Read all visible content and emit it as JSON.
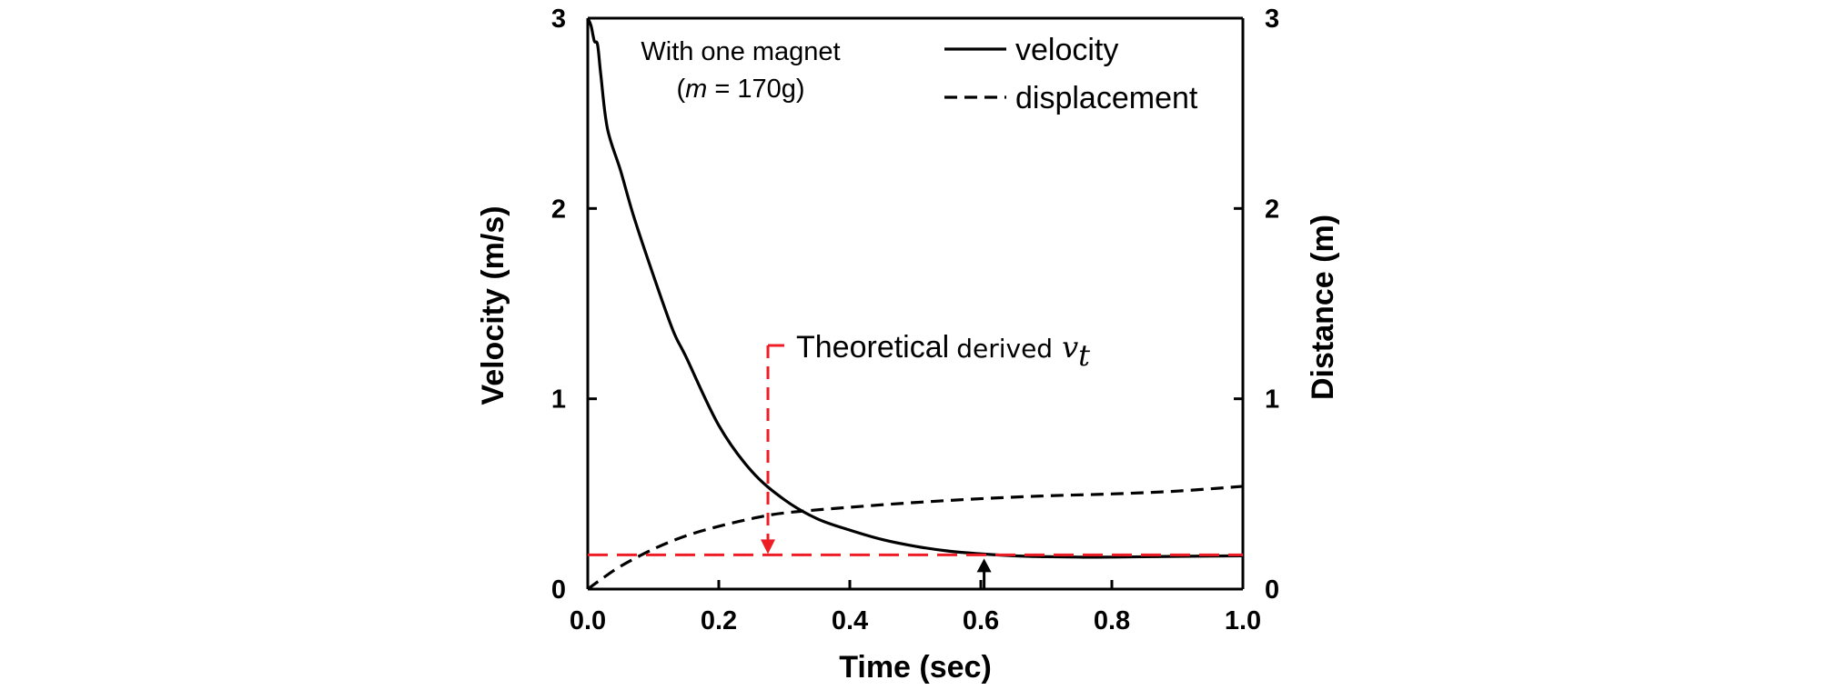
{
  "chart_data": {
    "type": "line",
    "x_axis": {
      "label": "Time (sec)",
      "range": [
        0.0,
        1.0
      ],
      "ticks": [
        0.0,
        0.2,
        0.4,
        0.6,
        0.8,
        1.0
      ],
      "tick_labels": [
        "0.0",
        "0.2",
        "0.4",
        "0.6",
        "0.8",
        "1.0"
      ]
    },
    "y_axis_left": {
      "label": "Velocity (m/s)",
      "range": [
        0,
        3
      ],
      "ticks": [
        0,
        1,
        2,
        3
      ],
      "tick_labels": [
        "0",
        "1",
        "2",
        "3"
      ]
    },
    "y_axis_right": {
      "label": "Distance (m)",
      "range": [
        0,
        3
      ],
      "ticks": [
        0,
        1,
        2,
        3
      ],
      "tick_labels": [
        "0",
        "1",
        "2",
        "3"
      ]
    },
    "grid": false,
    "legend_position": "top-right",
    "note": {
      "line1": "With one magnet",
      "line2_var": "m",
      "line2_rest": " = 170g)",
      "line2_open": "("
    },
    "series": [
      {
        "name": "velocity",
        "axis": "left",
        "style": "solid",
        "color": "#000000",
        "x": [
          0.0,
          0.005,
          0.01,
          0.015,
          0.02,
          0.03,
          0.05,
          0.07,
          0.1,
          0.13,
          0.15,
          0.2,
          0.25,
          0.3,
          0.35,
          0.4,
          0.45,
          0.5,
          0.55,
          0.6,
          0.65,
          0.7,
          0.75,
          0.8,
          0.9,
          1.0
        ],
        "y": [
          3.0,
          2.96,
          2.88,
          2.86,
          2.7,
          2.42,
          2.2,
          1.96,
          1.65,
          1.36,
          1.22,
          0.86,
          0.62,
          0.47,
          0.37,
          0.31,
          0.26,
          0.225,
          0.2,
          0.185,
          0.175,
          0.17,
          0.168,
          0.168,
          0.172,
          0.175
        ]
      },
      {
        "name": "displacement",
        "axis": "right",
        "style": "dashed",
        "color": "#000000",
        "x": [
          0.0,
          0.02,
          0.05,
          0.1,
          0.15,
          0.2,
          0.25,
          0.3,
          0.4,
          0.5,
          0.6,
          0.7,
          0.8,
          0.9,
          1.0
        ],
        "y": [
          0.0,
          0.05,
          0.12,
          0.21,
          0.28,
          0.33,
          0.37,
          0.4,
          0.43,
          0.455,
          0.475,
          0.49,
          0.5,
          0.515,
          0.54
        ]
      }
    ],
    "annotation": {
      "label_main": "Theoretical",
      "label_small": "derived",
      "label_math": "v",
      "label_sub": "t",
      "color": "#ee1c24",
      "value": 0.18,
      "arrow_x": 0.275,
      "label_y": 1.28,
      "crossing_arrow_x": 0.605
    }
  }
}
